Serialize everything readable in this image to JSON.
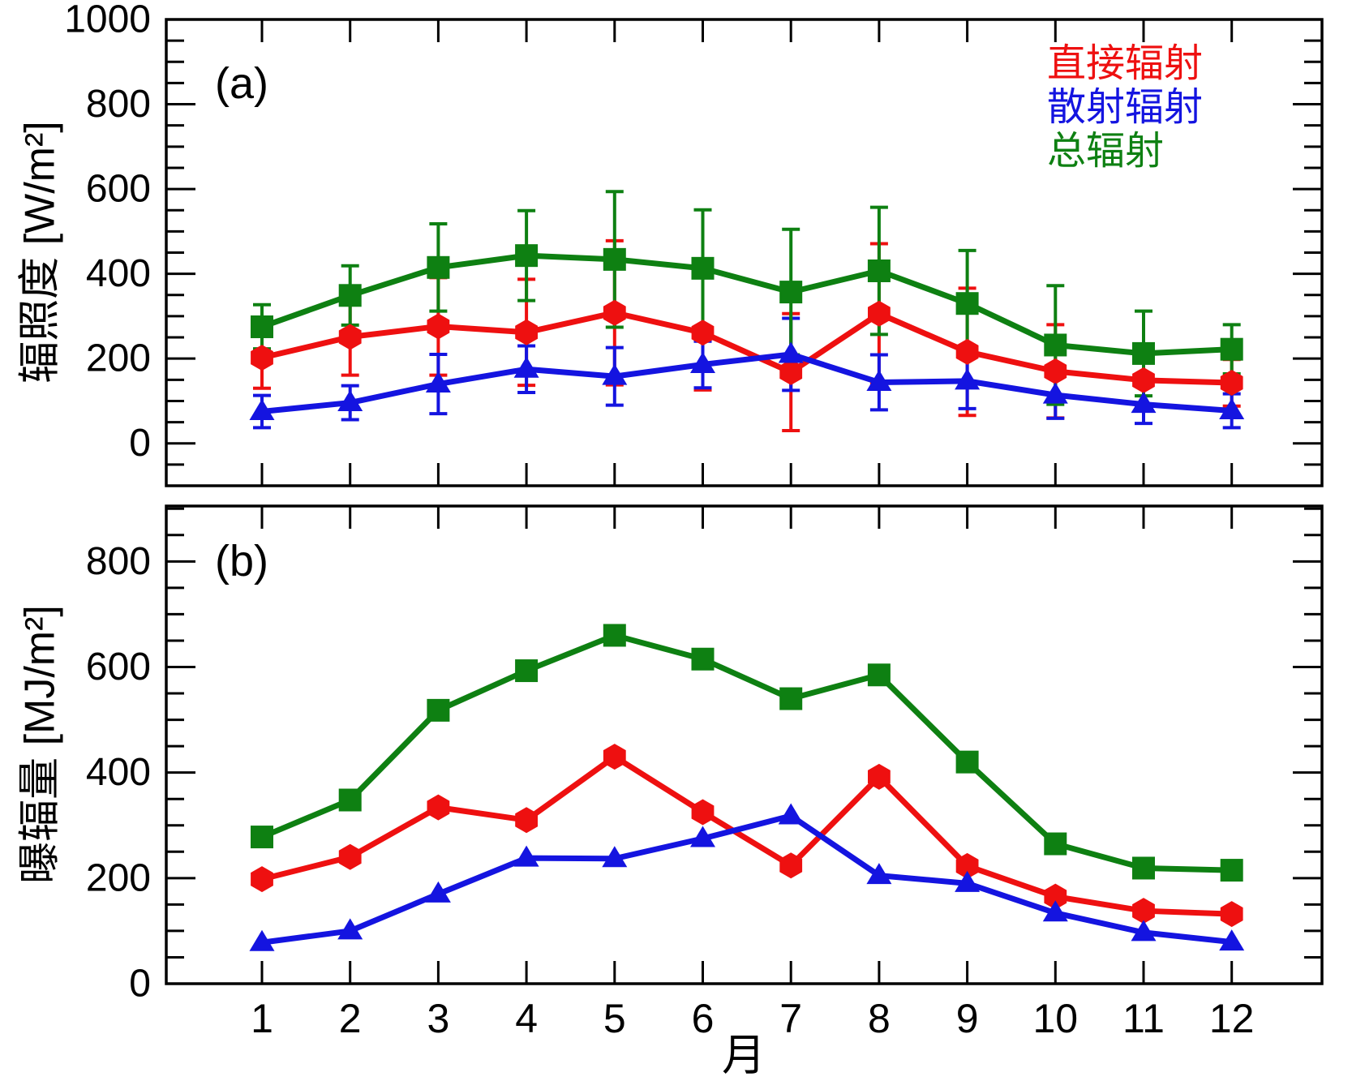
{
  "figure": {
    "xlabel": "月",
    "xtick_labels": [
      "1",
      "2",
      "3",
      "4",
      "5",
      "6",
      "7",
      "8",
      "9",
      "10",
      "11",
      "12"
    ]
  },
  "legend": {
    "items": [
      {
        "label": "直接辐射",
        "color": "#ee1010"
      },
      {
        "label": "散射辐射",
        "color": "#1414e0"
      },
      {
        "label": "总辐射",
        "color": "#0e8012"
      }
    ]
  },
  "chart_data": [
    {
      "id": "a",
      "type": "line",
      "panel_label": "(a)",
      "ylabel": "辐照度 [W/m²]",
      "xlabel": "月",
      "ylim": [
        -100,
        1000
      ],
      "yticks_major": [
        0,
        200,
        400,
        600,
        800,
        1000
      ],
      "minor_step": 50,
      "grid": false,
      "legend_position": "upper right",
      "x": [
        1,
        2,
        3,
        4,
        5,
        6,
        7,
        8,
        9,
        10,
        11,
        12
      ],
      "series": [
        {
          "name": "直接辐射",
          "color": "#ee1010",
          "marker": "hexagon",
          "values": [
            202,
            251,
            276,
            262,
            308,
            261,
            168,
            306,
            216,
            170,
            149,
            143
          ],
          "errors": [
            72,
            90,
            115,
            125,
            170,
            135,
            138,
            165,
            150,
            110,
            60,
            55
          ]
        },
        {
          "name": "散射辐射",
          "color": "#1414e0",
          "marker": "triangle",
          "values": [
            75,
            96,
            140,
            175,
            158,
            186,
            210,
            144,
            147,
            114,
            92,
            77
          ],
          "errors": [
            38,
            40,
            70,
            55,
            68,
            55,
            85,
            65,
            65,
            55,
            45,
            40
          ]
        },
        {
          "name": "总辐射",
          "color": "#0e8012",
          "marker": "square",
          "values": [
            275,
            349,
            415,
            443,
            434,
            413,
            357,
            407,
            330,
            232,
            212,
            222
          ],
          "errors": [
            52,
            70,
            103,
            106,
            160,
            138,
            148,
            150,
            125,
            140,
            100,
            58
          ]
        }
      ]
    },
    {
      "id": "b",
      "type": "line",
      "panel_label": "(b)",
      "ylabel": "曝辐量 [MJ/m²]",
      "xlabel": "月",
      "ylim": [
        0,
        905
      ],
      "yticks_major": [
        0,
        200,
        400,
        600,
        800
      ],
      "minor_step": 50,
      "grid": false,
      "x": [
        1,
        2,
        3,
        4,
        5,
        6,
        7,
        8,
        9,
        10,
        11,
        12
      ],
      "series": [
        {
          "name": "直接辐射",
          "color": "#ee1010",
          "marker": "hexagon",
          "values": [
            198,
            240,
            334,
            310,
            430,
            325,
            224,
            392,
            223,
            165,
            138,
            132
          ]
        },
        {
          "name": "散射辐射",
          "color": "#1414e0",
          "marker": "triangle",
          "values": [
            78,
            100,
            170,
            238,
            237,
            275,
            318,
            205,
            190,
            134,
            97,
            79
          ]
        },
        {
          "name": "总辐射",
          "color": "#0e8012",
          "marker": "square",
          "values": [
            278,
            348,
            518,
            593,
            660,
            615,
            540,
            585,
            420,
            265,
            219,
            215
          ]
        }
      ]
    }
  ]
}
